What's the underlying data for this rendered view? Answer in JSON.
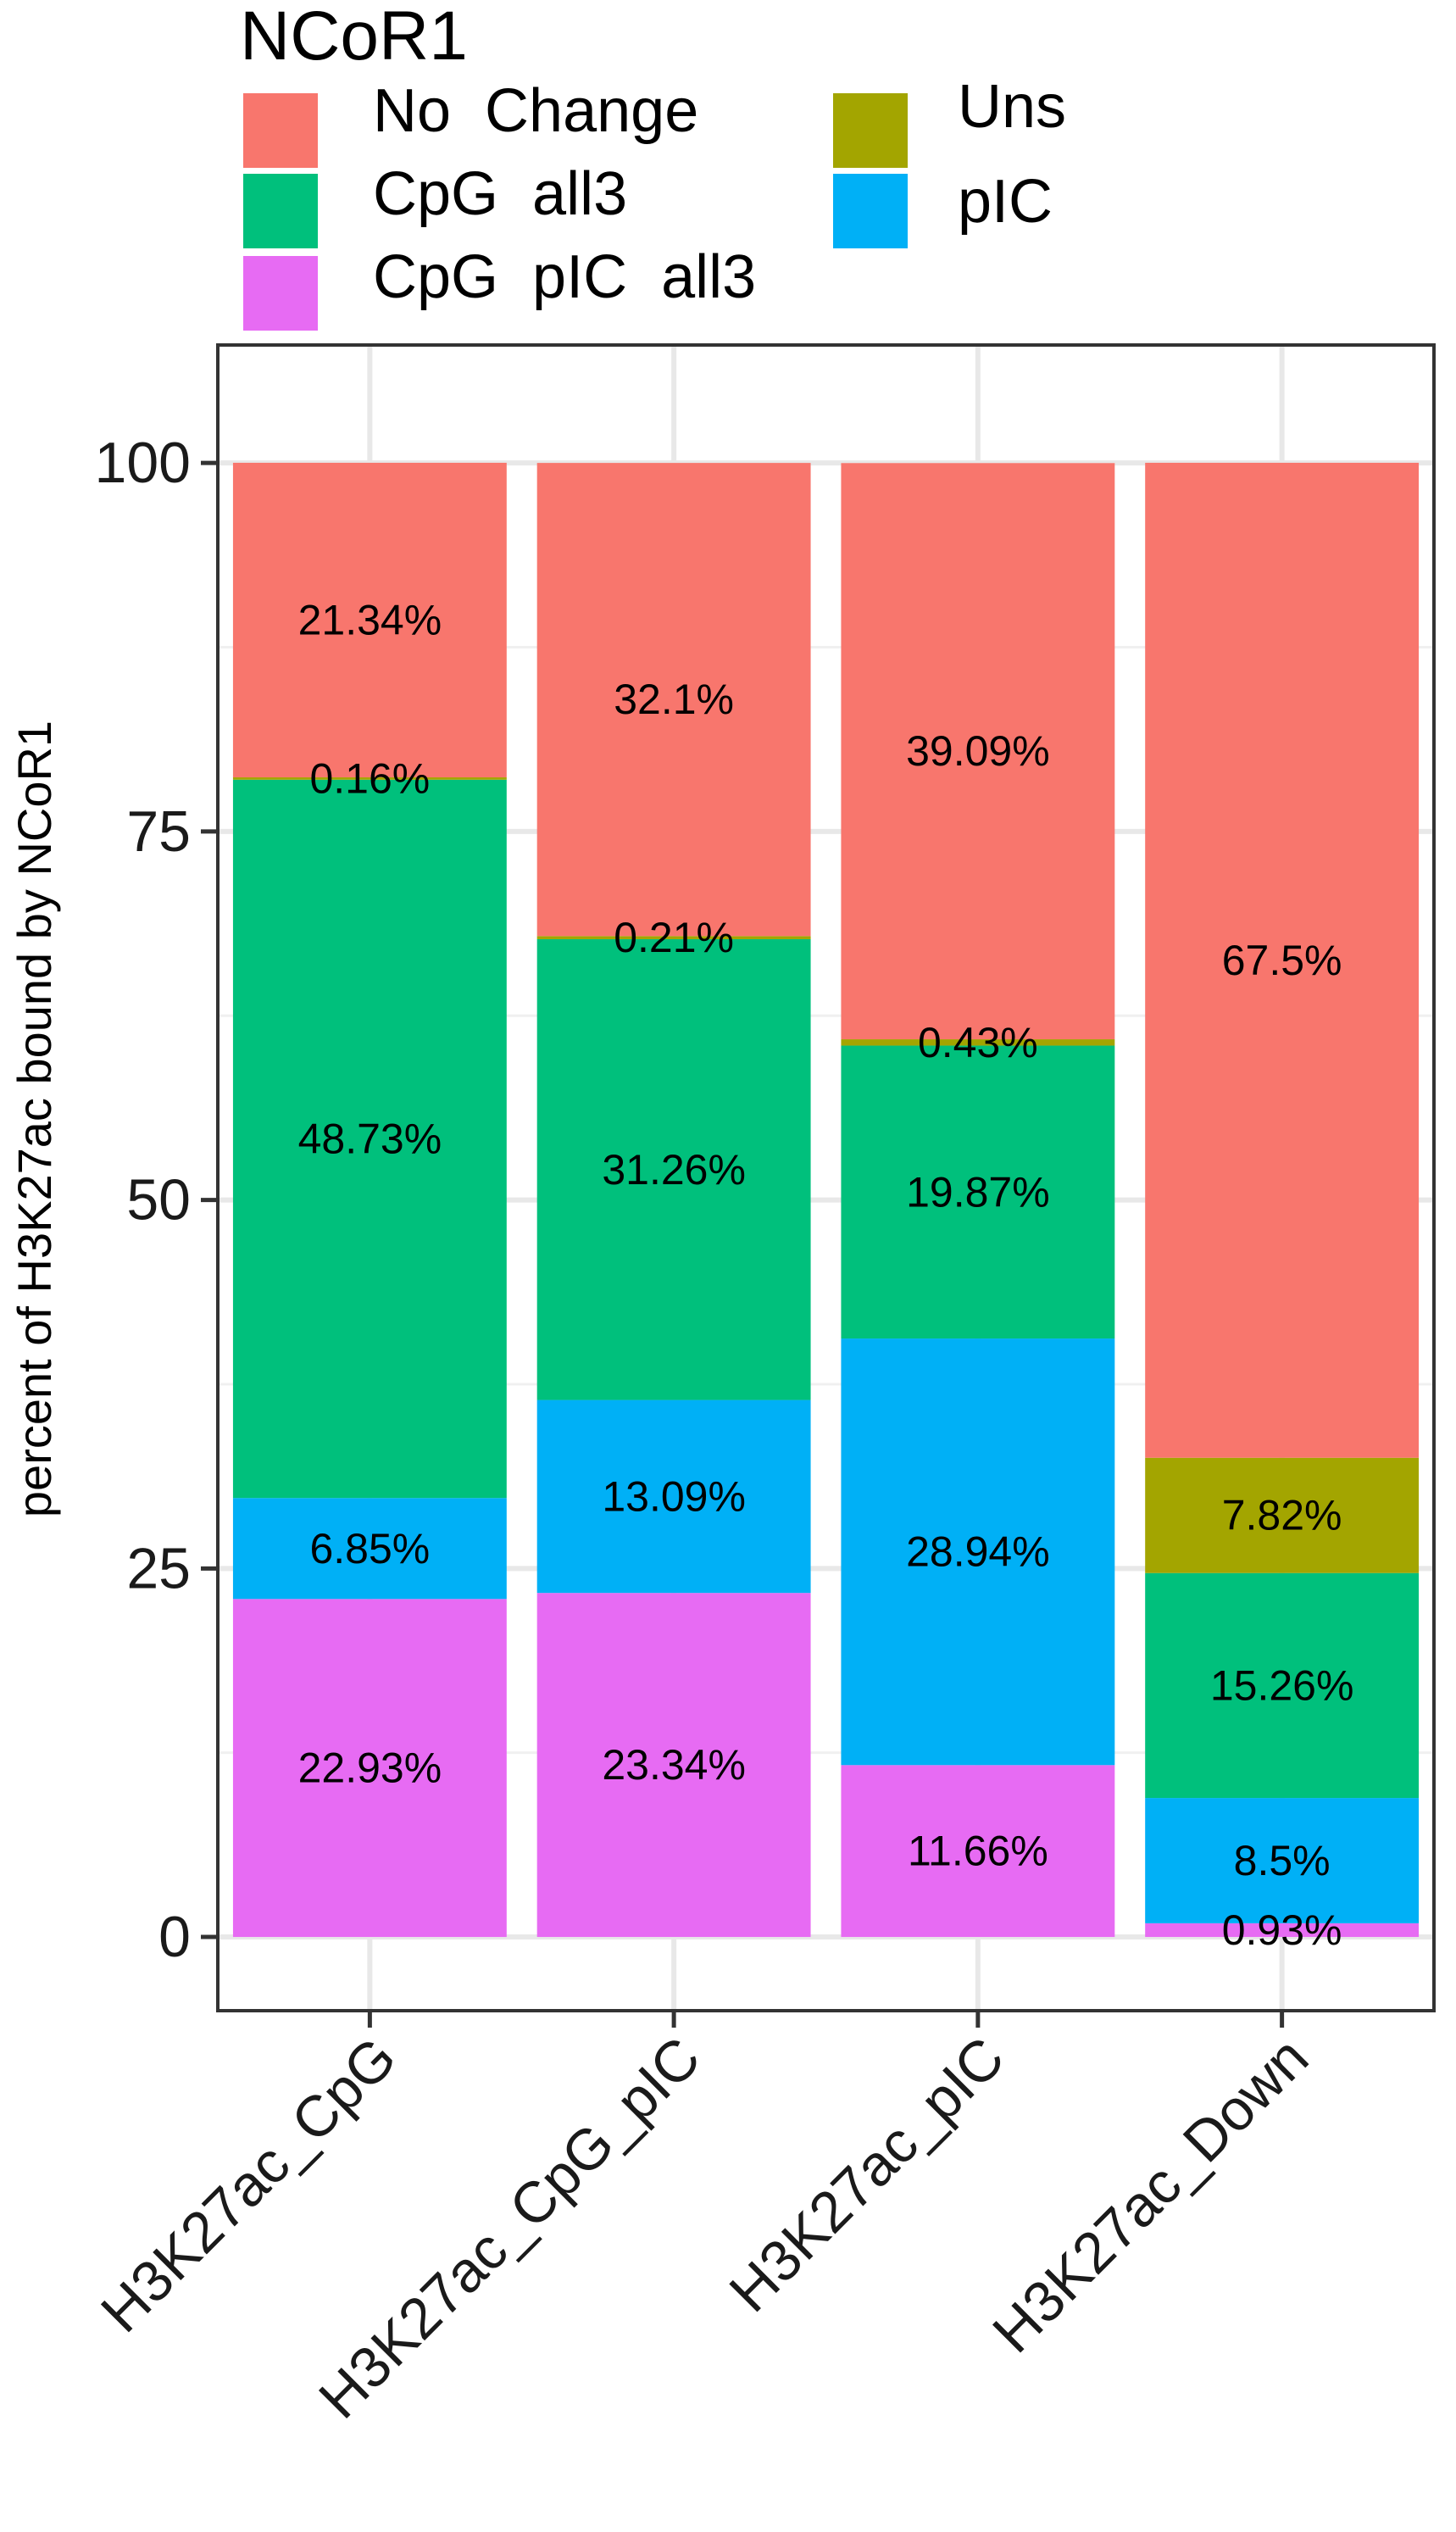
{
  "chart_data": {
    "type": "bar",
    "stacked": true,
    "title": "",
    "xlabel": "",
    "ylabel": "percent of H3K27ac bound by NCoR1",
    "ylim": [
      -5,
      108
    ],
    "yticks": [
      0,
      25,
      50,
      75,
      100
    ],
    "grid": true,
    "legend": {
      "title": "NCoR1",
      "placement": "top",
      "entries": [
        {
          "name": "No  Change",
          "color": "#F8766D"
        },
        {
          "name": "CpG  all3",
          "color": "#00C07C"
        },
        {
          "name": "CpG  pIC  all3",
          "color": "#E76BF3"
        },
        {
          "name": "Uns",
          "color": "#A3A500"
        },
        {
          "name": "pIC",
          "color": "#00B0F6"
        }
      ]
    },
    "categories": [
      "H3K27ac_CpG",
      "H3K27ac_CpG_pIC",
      "H3K27ac_pIC",
      "H3K27ac_Down"
    ],
    "stack_order_bottom_to_top": [
      "CpG  pIC  all3",
      "pIC",
      "CpG  all3",
      "Uns",
      "No  Change"
    ],
    "series": [
      {
        "name": "CpG  pIC  all3",
        "color": "#E76BF3",
        "values": [
          22.93,
          23.34,
          11.66,
          0.93
        ],
        "labels": [
          "22.93%",
          "23.34%",
          "11.66%",
          "0.93%"
        ]
      },
      {
        "name": "pIC",
        "color": "#00B0F6",
        "values": [
          6.85,
          13.09,
          28.94,
          8.5
        ],
        "labels": [
          "6.85%",
          "13.09%",
          "28.94%",
          "8.5%"
        ]
      },
      {
        "name": "CpG  all3",
        "color": "#00C07C",
        "values": [
          48.73,
          31.26,
          19.87,
          15.26
        ],
        "labels": [
          "48.73%",
          "31.26%",
          "19.87%",
          "15.26%"
        ]
      },
      {
        "name": "Uns",
        "color": "#A3A500",
        "values": [
          0.16,
          0.21,
          0.43,
          7.82
        ],
        "labels": [
          "0.16%",
          "0.21%",
          "0.43%",
          "7.82%"
        ]
      },
      {
        "name": "No  Change",
        "color": "#F8766D",
        "values": [
          21.34,
          32.1,
          39.09,
          67.5
        ],
        "labels": [
          "21.34%",
          "32.1%",
          "39.09%",
          "67.5%"
        ]
      }
    ]
  }
}
